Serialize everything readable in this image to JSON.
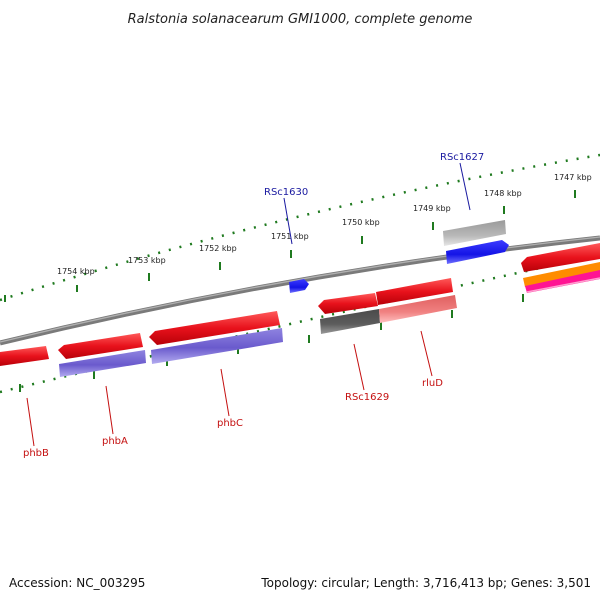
{
  "title": "Ralstonia solanacearum GMI1000, complete genome",
  "footer": {
    "accession": "Accession: NC_003295",
    "summary": "Topology: circular; Length: 3,716,413 bp; Genes: 3,501"
  },
  "position_labels": [
    "1754 kbp",
    "1753 kbp",
    "1752 kbp",
    "1751 kbp",
    "1750 kbp",
    "1749 kbp",
    "1748 kbp",
    "1747 kbp"
  ],
  "gene_labels_top": [
    "RSc1630",
    "RSc1627"
  ],
  "gene_labels_bottom": [
    "phbB",
    "phbA",
    "phbC",
    "RSc1629",
    "rluD"
  ],
  "colors": {
    "backbone": "#7a7a7a",
    "tick": "#1f7a1f",
    "gene_red": "#e8121c",
    "gene_purple": "#6a5acd",
    "gene_blue": "#1414e6",
    "gene_gray": "#b0b0b0",
    "gene_dark_gray": "#5c5c5c",
    "gene_pink": "#f08080",
    "gene_orange": "#ff8c00",
    "gene_magenta": "#ff1493",
    "label_top": "#1a1aa0",
    "label_bottom": "#c41010"
  }
}
